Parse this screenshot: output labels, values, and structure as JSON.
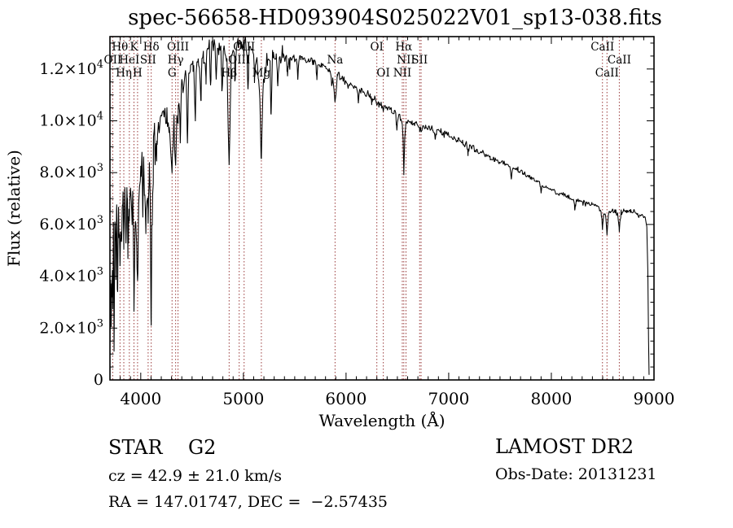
{
  "title": "spec-56658-HD093904S025022V01_sp13-038.fits",
  "chart_data": {
    "type": "line",
    "title": "spec-56658-HD093904S025022V01_sp13-038.fits",
    "xlabel": "Wavelength (Å)",
    "ylabel": "Flux (relative)",
    "xlim": [
      3700,
      9000
    ],
    "ylim": [
      0,
      13250
    ],
    "grid": false,
    "line_color": "#000000",
    "spectral_line_color": "#993a3a",
    "x_ticks": [
      4000,
      5000,
      6000,
      7000,
      8000,
      9000
    ],
    "x_minor_step": 100,
    "y_minor_step": 500,
    "y_ticks": [
      {
        "value": 0,
        "text": "0"
      },
      {
        "value": 2000,
        "mantissa": "2.0",
        "exponent": "3"
      },
      {
        "value": 4000,
        "mantissa": "4.0",
        "exponent": "3"
      },
      {
        "value": 6000,
        "mantissa": "6.0",
        "exponent": "3"
      },
      {
        "value": 8000,
        "mantissa": "8.0",
        "exponent": "3"
      },
      {
        "value": 10000,
        "mantissa": "1.0",
        "exponent": "4"
      },
      {
        "value": 12000,
        "mantissa": "1.2",
        "exponent": "4"
      }
    ],
    "spectral_lines": [
      {
        "wavelength": 3727,
        "label": "OII",
        "row": 2
      },
      {
        "wavelength": 3798,
        "label": "Hθ",
        "row": 1
      },
      {
        "wavelength": 3835,
        "label": "Hη",
        "row": 3
      },
      {
        "wavelength": 3889,
        "label": "HeI",
        "row": 2
      },
      {
        "wavelength": 3934,
        "label": "K",
        "row": 1
      },
      {
        "wavelength": 3969,
        "label": "H",
        "row": 3
      },
      {
        "wavelength": 4072,
        "label": "SII",
        "row": 2
      },
      {
        "wavelength": 4102,
        "label": "Hδ",
        "row": 1
      },
      {
        "wavelength": 4305,
        "label": "G",
        "row": 3
      },
      {
        "wavelength": 4340,
        "label": "Hγ",
        "row": 2
      },
      {
        "wavelength": 4363,
        "label": "OIII",
        "row": 1
      },
      {
        "wavelength": 4861,
        "label": "Hβ",
        "row": 3
      },
      {
        "wavelength": 4959,
        "label": "OIII",
        "row": 2
      },
      {
        "wavelength": 5007,
        "label": "OIII",
        "row": 1
      },
      {
        "wavelength": 5175,
        "label": "Mg",
        "row": 3
      },
      {
        "wavelength": 5893,
        "label": "Na",
        "row": 2
      },
      {
        "wavelength": 6300,
        "label": "OI",
        "row": 1
      },
      {
        "wavelength": 6363,
        "label": "OI",
        "row": 3
      },
      {
        "wavelength": 6548,
        "label": "NII",
        "row": 3
      },
      {
        "wavelength": 6563,
        "label": "Hα",
        "row": 1
      },
      {
        "wavelength": 6584,
        "label": "NII",
        "row": 2
      },
      {
        "wavelength": 6717,
        "label": "SII",
        "row": 2
      },
      {
        "wavelength": 6731,
        "label": "",
        "row": 2
      },
      {
        "wavelength": 8498,
        "label": "CaII",
        "row": 1
      },
      {
        "wavelength": 8542,
        "label": "CaII",
        "row": 3
      },
      {
        "wavelength": 8662,
        "label": "CaII",
        "row": 2
      }
    ],
    "continuum": [
      [
        3700,
        1600
      ],
      [
        3706,
        4200
      ],
      [
        3712,
        2300
      ],
      [
        3718,
        5200
      ],
      [
        3727,
        3300
      ],
      [
        3734,
        5800
      ],
      [
        3742,
        3100
      ],
      [
        3750,
        6200
      ],
      [
        3758,
        4000
      ],
      [
        3766,
        6500
      ],
      [
        3775,
        3600
      ],
      [
        3784,
        6600
      ],
      [
        3792,
        5000
      ],
      [
        3798,
        4100
      ],
      [
        3806,
        6900
      ],
      [
        3815,
        5400
      ],
      [
        3825,
        7100
      ],
      [
        3835,
        5000
      ],
      [
        3845,
        7200
      ],
      [
        3856,
        5600
      ],
      [
        3868,
        7500
      ],
      [
        3880,
        6200
      ],
      [
        3889,
        5600
      ],
      [
        3900,
        7900
      ],
      [
        3912,
        6800
      ],
      [
        3922,
        7600
      ],
      [
        3934,
        2900
      ],
      [
        3944,
        6200
      ],
      [
        3952,
        7000
      ],
      [
        3960,
        5400
      ],
      [
        3969,
        3100
      ],
      [
        3978,
        6400
      ],
      [
        3988,
        7600
      ],
      [
        4000,
        7900
      ],
      [
        4012,
        8300
      ],
      [
        4026,
        8600
      ],
      [
        4040,
        7000
      ],
      [
        4050,
        5300
      ],
      [
        4060,
        7600
      ],
      [
        4072,
        6600
      ],
      [
        4082,
        8300
      ],
      [
        4092,
        6800
      ],
      [
        4102,
        2700
      ],
      [
        4112,
        6900
      ],
      [
        4122,
        8700
      ],
      [
        4134,
        9200
      ],
      [
        4150,
        9400
      ],
      [
        4170,
        9800
      ],
      [
        4190,
        10000
      ],
      [
        4210,
        10200
      ],
      [
        4232,
        10300
      ],
      [
        4255,
        10200
      ],
      [
        4278,
        9600
      ],
      [
        4292,
        8900
      ],
      [
        4305,
        7900
      ],
      [
        4316,
        9300
      ],
      [
        4328,
        9800
      ],
      [
        4340,
        8100
      ],
      [
        4352,
        9900
      ],
      [
        4366,
        10500
      ],
      [
        4382,
        10900
      ],
      [
        4400,
        11200
      ],
      [
        4420,
        11500
      ],
      [
        4440,
        11700
      ],
      [
        4462,
        11900
      ],
      [
        4485,
        12000
      ],
      [
        4510,
        12000
      ],
      [
        4535,
        12100
      ],
      [
        4560,
        12300
      ],
      [
        4585,
        12400
      ],
      [
        4610,
        12500
      ],
      [
        4640,
        12700
      ],
      [
        4670,
        12800
      ],
      [
        4700,
        12900
      ],
      [
        4730,
        12900
      ],
      [
        4760,
        12800
      ],
      [
        4790,
        12800
      ],
      [
        4820,
        12600
      ],
      [
        4840,
        12300
      ],
      [
        4861,
        8200
      ],
      [
        4880,
        12200
      ],
      [
        4900,
        12700
      ],
      [
        4925,
        12900
      ],
      [
        4950,
        13000
      ],
      [
        4975,
        13000
      ],
      [
        5000,
        12950
      ],
      [
        5030,
        12900
      ],
      [
        5060,
        12850
      ],
      [
        5090,
        12700
      ],
      [
        5120,
        12500
      ],
      [
        5145,
        12000
      ],
      [
        5160,
        11000
      ],
      [
        5175,
        8300
      ],
      [
        5190,
        11200
      ],
      [
        5210,
        12100
      ],
      [
        5235,
        12400
      ],
      [
        5260,
        12500
      ],
      [
        5290,
        12550
      ],
      [
        5320,
        12500
      ],
      [
        5350,
        12450
      ],
      [
        5385,
        12500
      ],
      [
        5420,
        12450
      ],
      [
        5455,
        12400
      ],
      [
        5490,
        12450
      ],
      [
        5525,
        12400
      ],
      [
        5560,
        12450
      ],
      [
        5600,
        12400
      ],
      [
        5640,
        12350
      ],
      [
        5680,
        12300
      ],
      [
        5720,
        12250
      ],
      [
        5760,
        12150
      ],
      [
        5800,
        12050
      ],
      [
        5840,
        11900
      ],
      [
        5870,
        11750
      ],
      [
        5893,
        10700
      ],
      [
        5915,
        11750
      ],
      [
        5945,
        11650
      ],
      [
        5980,
        11550
      ],
      [
        6020,
        11450
      ],
      [
        6060,
        11350
      ],
      [
        6100,
        11300
      ],
      [
        6145,
        11200
      ],
      [
        6190,
        11100
      ],
      [
        6235,
        11000
      ],
      [
        6280,
        10850
      ],
      [
        6300,
        10550
      ],
      [
        6320,
        10750
      ],
      [
        6342,
        10650
      ],
      [
        6363,
        10350
      ],
      [
        6385,
        10600
      ],
      [
        6410,
        10550
      ],
      [
        6440,
        10450
      ],
      [
        6470,
        10350
      ],
      [
        6500,
        10250
      ],
      [
        6530,
        10150
      ],
      [
        6548,
        9900
      ],
      [
        6556,
        9300
      ],
      [
        6563,
        7950
      ],
      [
        6572,
        9400
      ],
      [
        6584,
        9900
      ],
      [
        6600,
        10050
      ],
      [
        6620,
        10000
      ],
      [
        6645,
        9950
      ],
      [
        6670,
        9900
      ],
      [
        6700,
        9850
      ],
      [
        6717,
        9600
      ],
      [
        6724,
        9700
      ],
      [
        6731,
        9600
      ],
      [
        6745,
        9800
      ],
      [
        6775,
        9750
      ],
      [
        6810,
        9700
      ],
      [
        6845,
        9650
      ],
      [
        6880,
        9600
      ],
      [
        6920,
        9550
      ],
      [
        6960,
        9500
      ],
      [
        7000,
        9450
      ],
      [
        7045,
        9350
      ],
      [
        7090,
        9250
      ],
      [
        7135,
        9150
      ],
      [
        7180,
        9050
      ],
      [
        7225,
        8950
      ],
      [
        7270,
        8870
      ],
      [
        7315,
        8790
      ],
      [
        7360,
        8700
      ],
      [
        7405,
        8600
      ],
      [
        7450,
        8520
      ],
      [
        7495,
        8440
      ],
      [
        7540,
        8360
      ],
      [
        7585,
        8280
      ],
      [
        7630,
        8200
      ],
      [
        7675,
        8100
      ],
      [
        7720,
        7990
      ],
      [
        7765,
        7890
      ],
      [
        7810,
        7790
      ],
      [
        7855,
        7680
      ],
      [
        7900,
        7570
      ],
      [
        7945,
        7460
      ],
      [
        7990,
        7360
      ],
      [
        8035,
        7280
      ],
      [
        8080,
        7200
      ],
      [
        8125,
        7120
      ],
      [
        8170,
        7040
      ],
      [
        8215,
        6980
      ],
      [
        8260,
        6910
      ],
      [
        8305,
        6850
      ],
      [
        8350,
        6800
      ],
      [
        8395,
        6760
      ],
      [
        8440,
        6720
      ],
      [
        8470,
        6620
      ],
      [
        8487,
        6400
      ],
      [
        8498,
        5850
      ],
      [
        8510,
        6450
      ],
      [
        8530,
        6300
      ],
      [
        8542,
        5550
      ],
      [
        8556,
        6400
      ],
      [
        8575,
        6500
      ],
      [
        8600,
        6550
      ],
      [
        8625,
        6500
      ],
      [
        8645,
        6400
      ],
      [
        8662,
        5750
      ],
      [
        8680,
        6500
      ],
      [
        8705,
        6550
      ],
      [
        8735,
        6500
      ],
      [
        8770,
        6550
      ],
      [
        8805,
        6500
      ],
      [
        8840,
        6450
      ],
      [
        8870,
        6350
      ],
      [
        8895,
        6300
      ],
      [
        8915,
        6250
      ],
      [
        8930,
        5900
      ],
      [
        8940,
        4200
      ],
      [
        8947,
        1500
      ],
      [
        8952,
        250
      ]
    ],
    "extra_dips": [
      [
        3870,
        800
      ],
      [
        4160,
        900
      ],
      [
        4385,
        1400
      ],
      [
        4455,
        2500
      ],
      [
        4530,
        2100
      ],
      [
        4585,
        1700
      ],
      [
        4635,
        1100
      ],
      [
        4680,
        1500
      ],
      [
        4735,
        1100
      ],
      [
        4792,
        1700
      ],
      [
        4920,
        1400
      ],
      [
        5045,
        1700
      ],
      [
        5110,
        1200
      ],
      [
        5270,
        2400
      ],
      [
        5335,
        1100
      ],
      [
        5430,
        800
      ],
      [
        5530,
        700
      ],
      [
        5715,
        550
      ],
      [
        5860,
        400
      ],
      [
        6120,
        400
      ],
      [
        6250,
        350
      ],
      [
        6495,
        600
      ],
      [
        6870,
        300
      ],
      [
        7190,
        350
      ],
      [
        7610,
        450
      ],
      [
        7900,
        300
      ],
      [
        8230,
        350
      ]
    ],
    "noise_seed": 7
  },
  "footer": {
    "classification": "STAR",
    "subclass": "G2",
    "cz": "cz = 42.9 ± 21.0 km/s",
    "ra_dec": "RA = 147.01747, DEC =  −2.57435",
    "survey": "LAMOST DR2",
    "obs_date": "Obs-Date: 20131231"
  }
}
